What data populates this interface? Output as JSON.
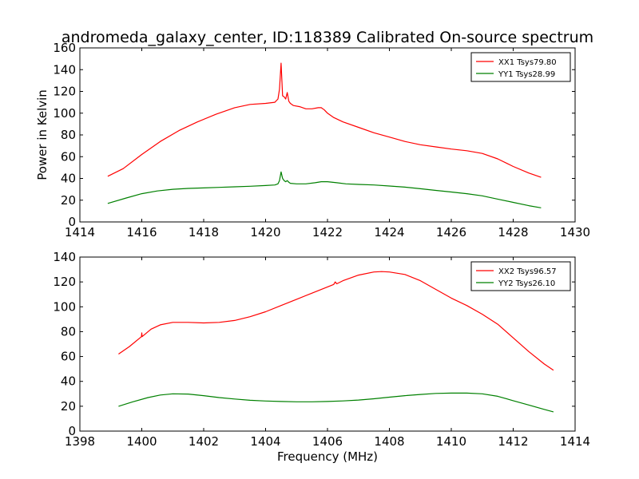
{
  "title": "andromeda_galaxy_center, ID:118389 Calibrated On-source spectrum",
  "chart_data": [
    {
      "type": "line",
      "title": "andromeda_galaxy_center, ID:118389 Calibrated On-source spectrum",
      "xlabel": "",
      "ylabel": "Power in Kelvin",
      "xlim": [
        1414,
        1430
      ],
      "ylim": [
        0,
        160
      ],
      "xticks": [
        1414,
        1416,
        1418,
        1420,
        1422,
        1424,
        1426,
        1428,
        1430
      ],
      "yticks": [
        0,
        20,
        40,
        60,
        80,
        100,
        120,
        140,
        160
      ],
      "grid": false,
      "legend_position": "top-right",
      "series": [
        {
          "name": "XX1 Tsys79.80",
          "color": "#ff0000",
          "x": [
            1414.9,
            1415.4,
            1416.0,
            1416.6,
            1417.2,
            1417.8,
            1418.4,
            1419.0,
            1419.5,
            1420.0,
            1420.3,
            1420.4,
            1420.45,
            1420.5,
            1420.55,
            1420.6,
            1420.65,
            1420.7,
            1420.75,
            1420.8,
            1420.9,
            1421.1,
            1421.3,
            1421.5,
            1421.7,
            1421.8,
            1421.9,
            1422.0,
            1422.2,
            1422.5,
            1423.0,
            1423.5,
            1424.0,
            1424.5,
            1425.0,
            1425.5,
            1426.0,
            1426.5,
            1427.0,
            1427.5,
            1428.0,
            1428.5,
            1428.9
          ],
          "y": [
            42,
            49,
            62,
            74,
            84,
            92,
            99,
            105,
            108,
            109,
            110,
            113,
            122,
            146,
            116,
            115,
            113,
            119,
            111,
            109,
            107,
            106,
            104,
            104,
            105,
            105,
            103,
            100,
            96,
            92,
            87,
            82,
            78,
            74,
            71,
            69,
            67,
            65.5,
            63,
            58,
            51,
            45,
            41
          ]
        },
        {
          "name": "YY1 Tsys28.99",
          "color": "#008000",
          "x": [
            1414.9,
            1415.5,
            1416.0,
            1416.5,
            1417.0,
            1417.5,
            1418.0,
            1418.5,
            1419.0,
            1419.5,
            1420.0,
            1420.3,
            1420.4,
            1420.45,
            1420.5,
            1420.55,
            1420.6,
            1420.65,
            1420.7,
            1420.75,
            1420.8,
            1421.0,
            1421.3,
            1421.6,
            1421.8,
            1422.0,
            1422.3,
            1422.6,
            1423.0,
            1423.5,
            1424.0,
            1424.5,
            1425.0,
            1425.5,
            1426.0,
            1426.5,
            1427.0,
            1427.5,
            1428.0,
            1428.5,
            1428.9
          ],
          "y": [
            17,
            22,
            26,
            28.5,
            30,
            30.8,
            31.3,
            31.8,
            32.3,
            32.8,
            33.5,
            34,
            35,
            38,
            46,
            40,
            38,
            37,
            38,
            36.5,
            35.5,
            35,
            35,
            36,
            37,
            37,
            36,
            35,
            34.5,
            34,
            33,
            32,
            30.5,
            29,
            27.5,
            26,
            24,
            21,
            18,
            15,
            13
          ]
        }
      ]
    },
    {
      "type": "line",
      "title": "",
      "xlabel": "Frequency (MHz)",
      "ylabel": "",
      "xlim": [
        1398,
        1414
      ],
      "ylim": [
        0,
        140
      ],
      "xticks": [
        1398,
        1400,
        1402,
        1404,
        1406,
        1408,
        1410,
        1412,
        1414
      ],
      "yticks": [
        0,
        20,
        40,
        60,
        80,
        100,
        120,
        140
      ],
      "grid": false,
      "legend_position": "top-right",
      "series": [
        {
          "name": "XX2 Tsys96.57",
          "color": "#ff0000",
          "x": [
            1399.25,
            1399.6,
            1399.99,
            1400.0,
            1400.01,
            1400.3,
            1400.6,
            1401.0,
            1401.5,
            1402.0,
            1402.5,
            1403.0,
            1403.5,
            1404.0,
            1404.5,
            1405.0,
            1405.5,
            1406.0,
            1406.2,
            1406.25,
            1406.3,
            1406.5,
            1407.0,
            1407.5,
            1407.75,
            1408.0,
            1408.5,
            1409.0,
            1409.5,
            1410.0,
            1410.5,
            1411.0,
            1411.5,
            1412.0,
            1412.5,
            1413.0,
            1413.3
          ],
          "y": [
            62,
            68,
            76,
            79,
            76,
            82,
            85.5,
            87.5,
            87.5,
            87,
            87.5,
            89,
            92,
            96,
            101,
            106,
            111,
            116,
            118,
            120,
            118.5,
            121,
            125.5,
            128,
            128.3,
            128,
            126,
            121,
            114,
            107,
            101,
            94,
            86,
            75,
            64,
            54,
            49
          ]
        },
        {
          "name": "YY2 Tsys26.10",
          "color": "#008000",
          "x": [
            1399.25,
            1399.7,
            1400.2,
            1400.6,
            1401.0,
            1401.5,
            1402.0,
            1402.5,
            1403.0,
            1403.5,
            1404.0,
            1404.5,
            1405.0,
            1405.5,
            1406.0,
            1406.5,
            1407.0,
            1407.5,
            1408.0,
            1408.5,
            1409.0,
            1409.5,
            1410.0,
            1410.5,
            1411.0,
            1411.5,
            1412.0,
            1412.5,
            1413.0,
            1413.3
          ],
          "y": [
            20,
            23.5,
            27,
            29,
            30,
            29.8,
            28.5,
            27,
            25.8,
            24.8,
            24.2,
            23.8,
            23.6,
            23.6,
            23.8,
            24.3,
            25,
            26,
            27.3,
            28.5,
            29.5,
            30.3,
            30.6,
            30.6,
            30,
            28,
            24.5,
            21,
            17.5,
            15.5
          ]
        }
      ]
    }
  ]
}
